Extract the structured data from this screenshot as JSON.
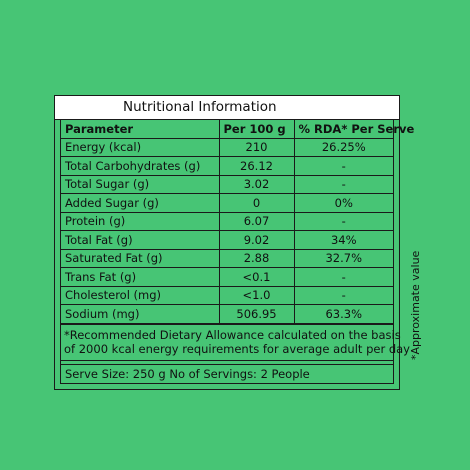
{
  "panel": {
    "title": "Nutritional Information",
    "headers": {
      "parameter": "Parameter",
      "per100": "Per 100 g",
      "rda": "% RDA* Per Serve"
    },
    "rows": [
      {
        "parameter": "Energy (kcal)",
        "per100": "210",
        "rda": "26.25%"
      },
      {
        "parameter": "Total Carbohydrates (g)",
        "per100": "26.12",
        "rda": "-"
      },
      {
        "parameter": "Total Sugar (g)",
        "per100": "3.02",
        "rda": "-"
      },
      {
        "parameter": "Added Sugar (g)",
        "per100": "0",
        "rda": "0%"
      },
      {
        "parameter": "Protein (g)",
        "per100": "6.07",
        "rda": "-"
      },
      {
        "parameter": "Total Fat (g)",
        "per100": "9.02",
        "rda": "34%"
      },
      {
        "parameter": "Saturated Fat (g)",
        "per100": "2.88",
        "rda": "32.7%"
      },
      {
        "parameter": "Trans Fat (g)",
        "per100": "<0.1",
        "rda": "-"
      },
      {
        "parameter": "Cholesterol  (mg)",
        "per100": "<1.0",
        "rda": "-"
      },
      {
        "parameter": "Sodium  (mg)",
        "per100": "506.95",
        "rda": "63.3%"
      }
    ],
    "note_line1": "*Recommended Dietary Allowance calculated on the basis",
    "note_line2": "of 2000 kcal energy requirements for average adult per day",
    "serve_size": "Serve Size: 250 g No of Servings: 2 People"
  },
  "side_note": "*Approximate value",
  "colors": {
    "background": "#47c575",
    "title_bar": "#ffffff",
    "border": "#1a1a1a"
  }
}
